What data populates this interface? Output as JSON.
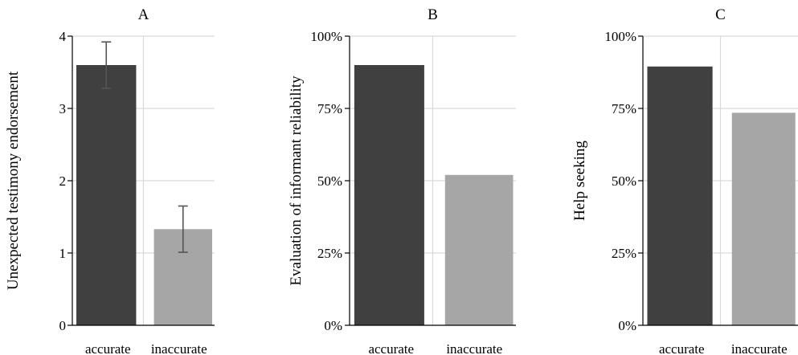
{
  "chart_data": [
    {
      "type": "bar",
      "title": "A",
      "ylabel": "Unexpected testimony endorsement",
      "categories": [
        "accurate",
        "inaccurate"
      ],
      "values": [
        3.6,
        1.33
      ],
      "error": [
        0.32,
        0.32
      ],
      "ylim": [
        0,
        4
      ],
      "yticks": [
        0,
        1,
        2,
        3,
        4
      ],
      "ytick_labels": [
        "0",
        "1",
        "2",
        "3",
        "4"
      ],
      "grid": true,
      "colors": [
        "#404040",
        "#a6a6a6"
      ]
    },
    {
      "type": "bar",
      "title": "B",
      "ylabel": "Evaluation of informant reliability",
      "categories": [
        "accurate",
        "inaccurate"
      ],
      "values": [
        0.9,
        0.52
      ],
      "ylim": [
        0,
        1
      ],
      "yticks": [
        0,
        0.25,
        0.5,
        0.75,
        1
      ],
      "ytick_labels": [
        "0%",
        "25%",
        "50%",
        "75%",
        "100%"
      ],
      "grid": true,
      "colors": [
        "#404040",
        "#a6a6a6"
      ]
    },
    {
      "type": "bar",
      "title": "C",
      "ylabel": "Help seeking",
      "categories": [
        "accurate",
        "inaccurate"
      ],
      "values": [
        0.895,
        0.735
      ],
      "ylim": [
        0,
        1
      ],
      "yticks": [
        0,
        0.25,
        0.5,
        0.75,
        1
      ],
      "ytick_labels": [
        "0%",
        "25%",
        "50%",
        "75%",
        "100%"
      ],
      "grid": true,
      "colors": [
        "#404040",
        "#a6a6a6"
      ]
    }
  ]
}
